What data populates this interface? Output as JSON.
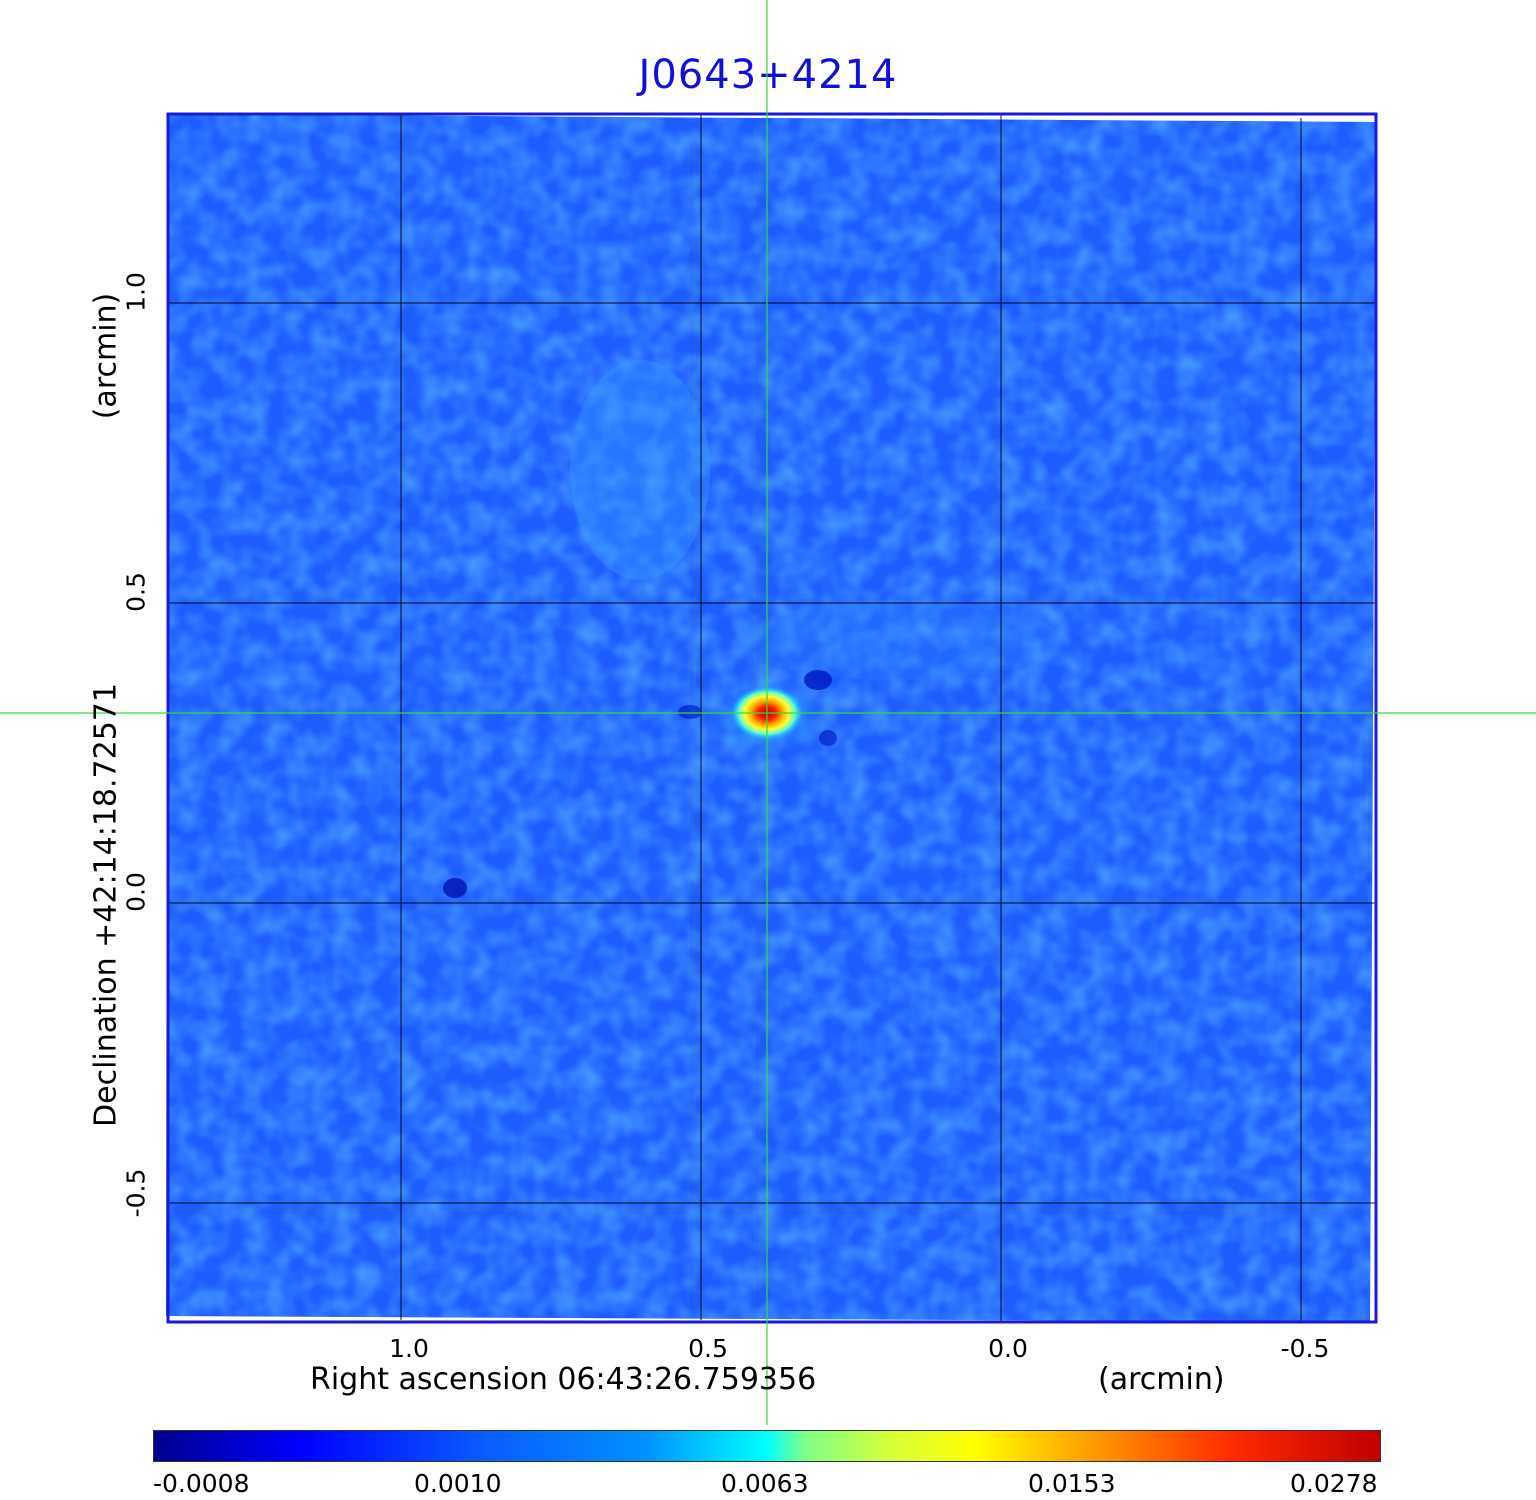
{
  "title": "J0643+4214",
  "ra_axis": {
    "label": "Right ascension  06:43:26.759356",
    "unit": "(arcmin)",
    "ticks": [
      "1.0",
      "0.5",
      "0.0",
      "-0.5"
    ]
  },
  "dec_axis": {
    "label": "Declination  +42:14:18.72571",
    "unit": "(arcmin)",
    "ticks": [
      "1.0",
      "0.5",
      "0.0",
      "-0.5"
    ]
  },
  "colorbar": {
    "ticks": [
      "-0.0008",
      "0.0010",
      "0.0063",
      "0.0153",
      "0.0278"
    ],
    "colormap": "jet"
  },
  "colors": {
    "title": "#1010d8",
    "frame": "#1a1ad0",
    "crosshair": "#33dd33",
    "grid": "#000000",
    "background_field": "#1f5fff"
  }
}
